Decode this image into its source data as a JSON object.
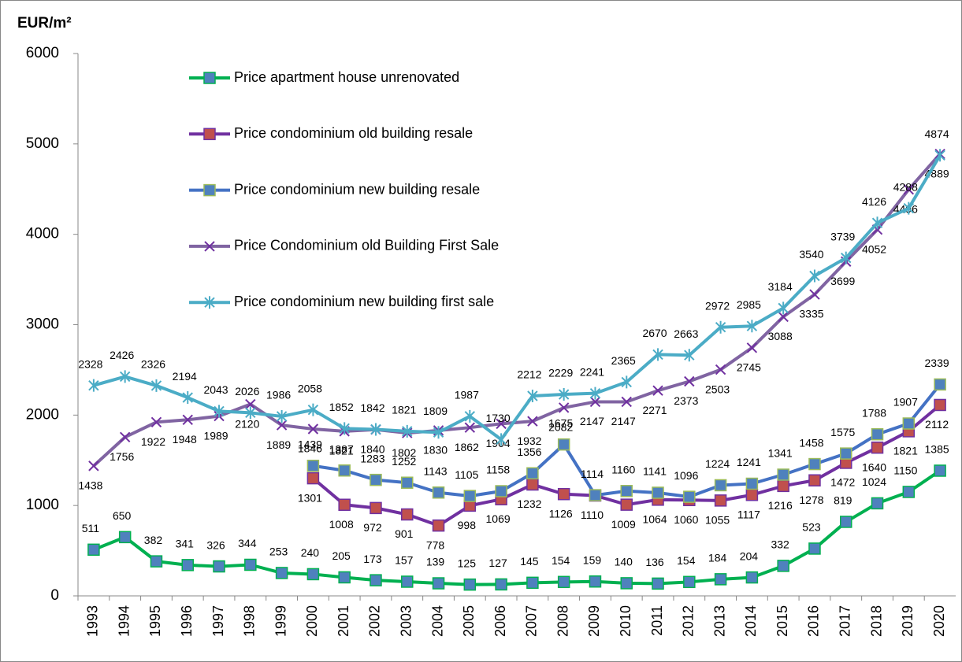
{
  "chart_data": {
    "type": "line",
    "y_axis_label": "EUR/m²",
    "categories": [
      "1993",
      "1994",
      "1995",
      "1996",
      "1997",
      "1998",
      "1999",
      "2000",
      "2001",
      "2002",
      "2003",
      "2004",
      "2005",
      "2006",
      "2007",
      "2008",
      "2009",
      "2010",
      "2011",
      "2012",
      "2013",
      "2014",
      "2015",
      "2016",
      "2017",
      "2018",
      "2019",
      "2020"
    ],
    "ylim": [
      0,
      6000
    ],
    "yticks": [
      0,
      1000,
      2000,
      3000,
      4000,
      5000,
      6000
    ],
    "grid": false,
    "series": [
      {
        "name": "Price apartment house unrenovated",
        "color": "#00b050",
        "marker": "square",
        "marker_color": "#4f81bd",
        "label_position": "above",
        "values": [
          511,
          650,
          382,
          341,
          326,
          344,
          253,
          240,
          205,
          173,
          157,
          139,
          125,
          127,
          145,
          154,
          159,
          140,
          136,
          154,
          184,
          204,
          332,
          523,
          819,
          1024,
          1150,
          1385
        ]
      },
      {
        "name": "Price condominium old building resale",
        "color": "#7030a0",
        "marker": "square",
        "marker_color": "#c0504d",
        "label_position": "below",
        "values": [
          null,
          null,
          null,
          null,
          null,
          null,
          null,
          1301,
          1008,
          972,
          901,
          778,
          998,
          1069,
          1232,
          1126,
          1110,
          1009,
          1064,
          1060,
          1055,
          1117,
          1216,
          1278,
          1472,
          1640,
          1821,
          2112
        ]
      },
      {
        "name": "Price condominium new building resale",
        "color": "#4472c4",
        "marker": "square",
        "marker_color": "#4f81bd",
        "marker_edge": "#9bbb59",
        "label_position": "above",
        "values": [
          null,
          null,
          null,
          null,
          null,
          null,
          null,
          1439,
          1387,
          1283,
          1252,
          1143,
          1105,
          1158,
          1356,
          1675,
          1114,
          1160,
          1141,
          1096,
          1224,
          1241,
          1341,
          1458,
          1575,
          1788,
          1907,
          2339
        ]
      },
      {
        "name": "Price Condominium old Building First Sale",
        "color": "#8064a2",
        "marker": "x",
        "marker_color": "#7030a0",
        "label_position": "below",
        "values": [
          1438,
          1756,
          1922,
          1948,
          1989,
          2120,
          1889,
          1846,
          1821,
          1840,
          1802,
          1830,
          1862,
          1904,
          1932,
          2082,
          2147,
          2147,
          2271,
          2373,
          2503,
          2745,
          3088,
          3335,
          3699,
          4052,
          4496,
          4889
        ]
      },
      {
        "name": "Price condominium new building first sale",
        "color": "#4bacc6",
        "marker": "star",
        "marker_color": "#4bacc6",
        "label_position": "above",
        "values": [
          2328,
          2426,
          2326,
          2194,
          2043,
          2026,
          1986,
          2058,
          1852,
          1842,
          1821,
          1809,
          1987,
          1730,
          2212,
          2229,
          2241,
          2365,
          2670,
          2663,
          2972,
          2985,
          3184,
          3540,
          3739,
          4126,
          4288,
          4874
        ]
      }
    ]
  }
}
